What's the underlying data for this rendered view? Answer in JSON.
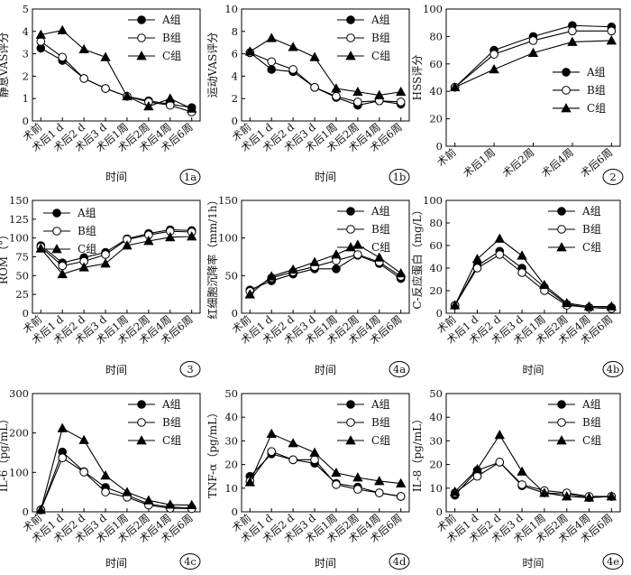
{
  "legend_labels": [
    "A组",
    "B组",
    "C组"
  ],
  "chart_data": [
    {
      "id": "1a",
      "type": "line",
      "panel_label": "1a",
      "ylabel": "静息VAS评分",
      "xlabel": "时间",
      "categories": [
        "术前",
        "术后1 d",
        "术后2 d",
        "术后3 d",
        "术后1周",
        "术后2周",
        "术后4周",
        "术后6周"
      ],
      "ylim": [
        0,
        5
      ],
      "yticks": [
        0,
        1,
        2,
        3,
        4,
        5
      ],
      "legend_pos": "top-right",
      "series": [
        {
          "name": "A组",
          "values": [
            3.25,
            2.7,
            1.9,
            1.45,
            1.1,
            0.9,
            0.75,
            0.6
          ]
        },
        {
          "name": "B组",
          "values": [
            3.55,
            2.85,
            1.9,
            1.45,
            1.1,
            0.85,
            0.7,
            0.4
          ]
        },
        {
          "name": "C组",
          "values": [
            3.85,
            4.05,
            3.2,
            2.85,
            1.1,
            0.65,
            1.0,
            0.55
          ]
        }
      ]
    },
    {
      "id": "1b",
      "type": "line",
      "panel_label": "1b",
      "ylabel": "运动VAS评分",
      "xlabel": "时间",
      "categories": [
        "术前",
        "术后1 d",
        "术后2 d",
        "术后3 d",
        "术后1周",
        "术后2周",
        "术后4周",
        "术后6周"
      ],
      "ylim": [
        0,
        10
      ],
      "yticks": [
        0,
        2,
        4,
        6,
        8,
        10
      ],
      "legend_pos": "top-right",
      "series": [
        {
          "name": "A组",
          "values": [
            6.1,
            4.6,
            4.4,
            3.0,
            2.1,
            1.4,
            1.8,
            1.5
          ]
        },
        {
          "name": "B组",
          "values": [
            6.1,
            5.3,
            4.6,
            3.0,
            2.2,
            1.7,
            1.8,
            1.7
          ]
        },
        {
          "name": "C组",
          "values": [
            6.2,
            7.4,
            6.6,
            5.7,
            2.9,
            2.6,
            2.3,
            2.6
          ]
        }
      ]
    },
    {
      "id": "2",
      "type": "line",
      "panel_label": "2",
      "ylabel": "HSS评分",
      "xlabel": "",
      "categories": [
        "术前",
        "术后1周",
        "术后2周",
        "术后4周",
        "术后6周"
      ],
      "ylim": [
        0,
        100
      ],
      "yticks": [
        0,
        20,
        40,
        60,
        80,
        100
      ],
      "legend_pos": "right",
      "series": [
        {
          "name": "A组",
          "values": [
            43,
            70,
            80,
            88,
            87
          ]
        },
        {
          "name": "B组",
          "values": [
            43,
            67,
            77,
            84,
            84
          ]
        },
        {
          "name": "C组",
          "values": [
            43,
            56,
            68,
            76,
            77
          ]
        }
      ]
    },
    {
      "id": "3",
      "type": "line",
      "panel_label": "3",
      "ylabel": "ROM（°）",
      "xlabel": "时间",
      "categories": [
        "术前",
        "术后1 d",
        "术后2 d",
        "术后3 d",
        "术后1周",
        "术后2周",
        "术后4周",
        "术后6周"
      ],
      "ylim": [
        0,
        150
      ],
      "yticks": [
        0,
        25,
        50,
        75,
        100,
        125,
        150
      ],
      "legend_pos": "top-left",
      "series": [
        {
          "name": "A组",
          "values": [
            90,
            67,
            74,
            81,
            99,
            106,
            111,
            110
          ]
        },
        {
          "name": "B组",
          "values": [
            88,
            63,
            69,
            78,
            98,
            104,
            109,
            108
          ]
        },
        {
          "name": "C组",
          "values": [
            86,
            52,
            61,
            66,
            90,
            96,
            101,
            102
          ]
        }
      ]
    },
    {
      "id": "4a",
      "type": "line",
      "panel_label": "4a",
      "ylabel": "红细胞沉降率（mm/1h）",
      "xlabel": "时间",
      "categories": [
        "术前",
        "术后1 d",
        "术后2 d",
        "术后3 d",
        "术后1周",
        "术后2周",
        "术后4周",
        "术后6周"
      ],
      "ylim": [
        0,
        150
      ],
      "yticks": [
        0,
        50,
        100,
        150
      ],
      "legend_pos": "top-right",
      "series": [
        {
          "name": "A组",
          "values": [
            31,
            43,
            52,
            59,
            59,
            77,
            66,
            46
          ]
        },
        {
          "name": "B组",
          "values": [
            29,
            47,
            55,
            62,
            70,
            78,
            68,
            49
          ]
        },
        {
          "name": "C组",
          "values": [
            25,
            49,
            58,
            68,
            78,
            91,
            74,
            53
          ]
        }
      ]
    },
    {
      "id": "4b",
      "type": "line",
      "panel_label": "4b",
      "ylabel": "C-反应蛋白（mg/L）",
      "xlabel": "时间",
      "categories": [
        "术前",
        "术后1 d",
        "术后2 d",
        "术后3 d",
        "术后1周",
        "术后2周",
        "术后4周",
        "术后6周"
      ],
      "ylim": [
        0,
        100
      ],
      "yticks": [
        0,
        20,
        40,
        60,
        80,
        100
      ],
      "legend_pos": "top-right",
      "series": [
        {
          "name": "A组",
          "values": [
            7,
            42,
            55,
            40,
            23,
            8,
            5,
            5
          ]
        },
        {
          "name": "B组",
          "values": [
            7,
            40,
            52,
            36,
            20,
            7,
            5,
            4
          ]
        },
        {
          "name": "C组",
          "values": [
            7,
            48,
            66,
            51,
            25,
            9,
            6,
            6
          ]
        }
      ]
    },
    {
      "id": "4c",
      "type": "line",
      "panel_label": "4c",
      "ylabel": "IL-6（pg/mL）",
      "xlabel": "时间",
      "categories": [
        "术前",
        "术后1 d",
        "术后2 d",
        "术后3 d",
        "术后1周",
        "术后2周",
        "术后4周",
        "术后6周"
      ],
      "ylim": [
        0,
        300
      ],
      "yticks": [
        0,
        100,
        200,
        300
      ],
      "legend_pos": "top-right",
      "series": [
        {
          "name": "A组",
          "values": [
            5,
            152,
            102,
            62,
            42,
            20,
            12,
            10
          ]
        },
        {
          "name": "B组",
          "values": [
            5,
            137,
            101,
            50,
            37,
            17,
            9,
            8
          ]
        },
        {
          "name": "C组",
          "values": [
            5,
            212,
            182,
            92,
            50,
            29,
            18,
            17
          ]
        }
      ]
    },
    {
      "id": "4d",
      "type": "line",
      "panel_label": "4d",
      "ylabel": "TNF-α（pg/mL）",
      "xlabel": "时间",
      "categories": [
        "术前",
        "术后1 d",
        "术后2 d",
        "术后3 d",
        "术后1周",
        "术后2周",
        "术后4周",
        "术后6周"
      ],
      "ylim": [
        0,
        50
      ],
      "yticks": [
        0,
        10,
        20,
        30,
        40,
        50
      ],
      "legend_pos": "top-right",
      "series": [
        {
          "name": "A组",
          "values": [
            15,
            24.5,
            22,
            20.5,
            12,
            10.5,
            8,
            6.5
          ]
        },
        {
          "name": "B组",
          "values": [
            13,
            25.5,
            22,
            22,
            11.5,
            9.5,
            8,
            6.5
          ]
        },
        {
          "name": "C组",
          "values": [
            12.5,
            33,
            29,
            25,
            16.5,
            14.5,
            13,
            12
          ]
        }
      ]
    },
    {
      "id": "4e",
      "type": "line",
      "panel_label": "4e",
      "ylabel": "IL-8（pg/mL）",
      "xlabel": "时间",
      "categories": [
        "术前",
        "术后1 d",
        "术后2 d",
        "术后3 d",
        "术后1周",
        "术后2周",
        "术后4周",
        "术后6周"
      ],
      "ylim": [
        0,
        50
      ],
      "yticks": [
        0,
        10,
        20,
        30,
        40,
        50
      ],
      "legend_pos": "top-right",
      "series": [
        {
          "name": "A组",
          "values": [
            7,
            17.5,
            21,
            11,
            8,
            7.5,
            6,
            6.5
          ]
        },
        {
          "name": "B组",
          "values": [
            8,
            15,
            21,
            11.5,
            9,
            8,
            6.5,
            6.5
          ]
        },
        {
          "name": "C组",
          "values": [
            8.5,
            18,
            32.5,
            17,
            8,
            6.5,
            6,
            6.5
          ]
        }
      ]
    }
  ]
}
